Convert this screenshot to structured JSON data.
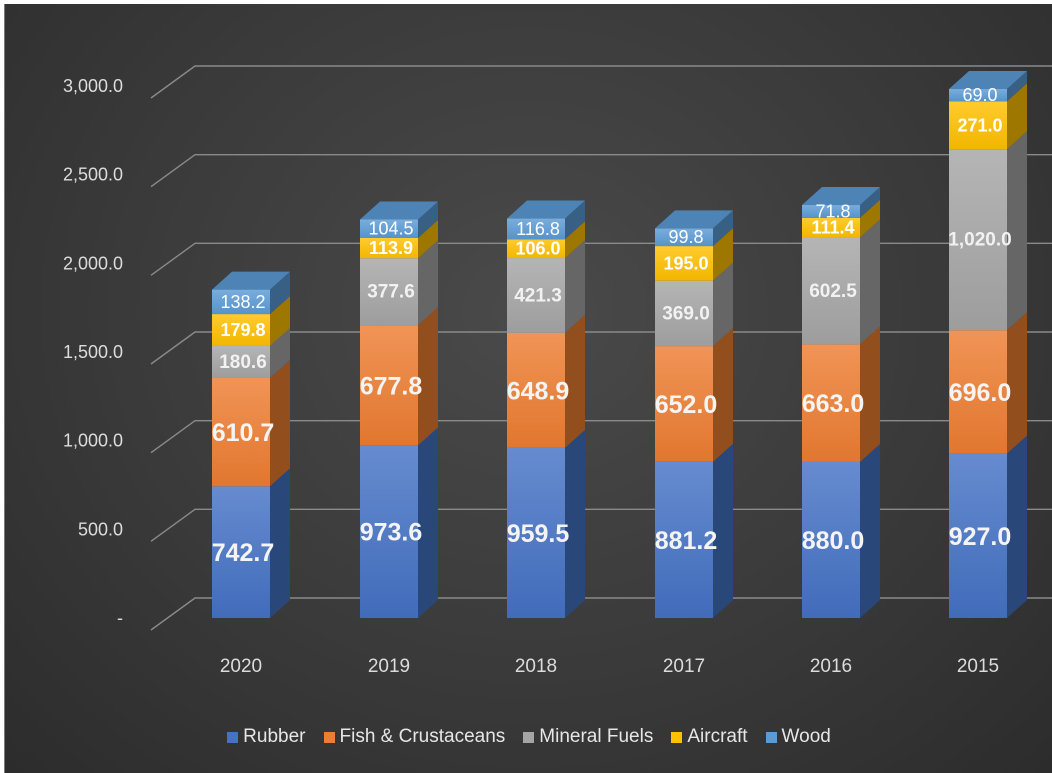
{
  "chart_data": {
    "type": "bar",
    "stacked": true,
    "three_d": true,
    "title": "",
    "categories": [
      "2020",
      "2019",
      "2018",
      "2017",
      "2016",
      "2015"
    ],
    "y_ticks": [
      "-",
      "500.0",
      "1,000.0",
      "1,500.0",
      "2,000.0",
      "2,500.0",
      "3,000.0"
    ],
    "ylim": [
      0,
      3000
    ],
    "grid": true,
    "legend_position": "bottom",
    "series": [
      {
        "name": "Rubber",
        "color": "#4472c4",
        "values": [
          742.7,
          973.6,
          959.5,
          881.2,
          880.0,
          927.0
        ],
        "labels": [
          "742.7",
          "973.6",
          "959.5",
          "881.2",
          "880.0",
          "927.0"
        ]
      },
      {
        "name": "Fish & Crustaceans",
        "color": "#ed7d31",
        "values": [
          610.7,
          677.8,
          648.9,
          652.0,
          663.0,
          696.0
        ],
        "labels": [
          "610.7",
          "677.8",
          "648.9",
          "652.0",
          "663.0",
          "696.0"
        ]
      },
      {
        "name": "Mineral Fuels",
        "color": "#a5a5a5",
        "values": [
          180.6,
          377.6,
          421.3,
          369.0,
          602.5,
          1020.0
        ],
        "labels": [
          "180.6",
          "377.6",
          "421.3",
          "369.0",
          "602.5",
          "1,020.0"
        ]
      },
      {
        "name": "Aircraft",
        "color": "#ffc000",
        "values": [
          179.8,
          113.9,
          106.0,
          195.0,
          111.4,
          271.0
        ],
        "labels": [
          "179.8",
          "113.9",
          "106.0",
          "195.0",
          "111.4",
          "271.0"
        ]
      },
      {
        "name": "Wood",
        "color": "#5b9bd5",
        "values": [
          138.2,
          104.5,
          116.8,
          99.8,
          71.8,
          69.0
        ],
        "labels": [
          "138.2",
          "104.5",
          "116.8",
          "99.8",
          "71.8",
          "69.0"
        ]
      }
    ]
  }
}
